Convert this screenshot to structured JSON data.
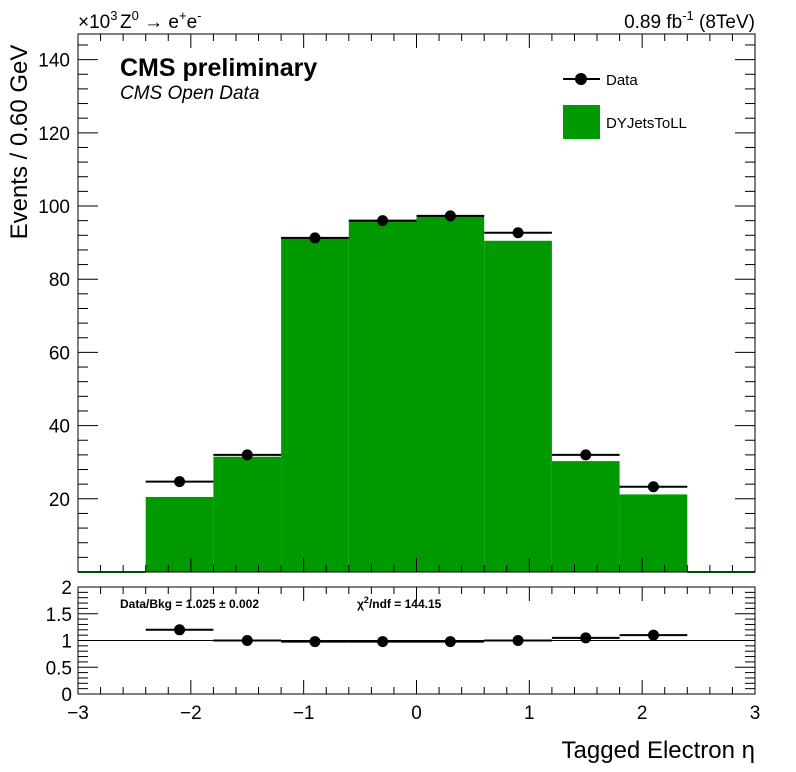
{
  "header": {
    "exponent_label": "×10",
    "exponent_power": "3",
    "process_main": "Z",
    "process_super": "0",
    "process_arrow": " → e",
    "process_plus": "+",
    "process_e": "e",
    "process_minus": "-",
    "lumi_value": "0.89 fb",
    "lumi_super": "-1",
    "lumi_energy": "  (8TeV)"
  },
  "labels": {
    "cms": "CMS preliminary",
    "open_data": "CMS Open Data",
    "ylabel": "Events / 0.60 GeV",
    "xlabel": "Tagged Electron η"
  },
  "legend": {
    "data": "Data",
    "mc": "DYJetsToLL",
    "position": "top-right"
  },
  "ratio": {
    "text": "Data/Bkg = 1.025 ± 0.002",
    "chi_symbol": "χ",
    "chi_super": "2",
    "chi_rest": "/ndf = 144.15"
  },
  "colors": {
    "mc_fill": "#009900",
    "data_marker": "#000000"
  },
  "chart_data": {
    "type": "bar",
    "main": {
      "bin_edges": [
        -2.4,
        -1.8,
        -1.2,
        -0.6,
        0.0,
        0.6,
        1.2,
        1.8,
        2.4
      ],
      "mc_values": [
        20.5,
        31.5,
        91.5,
        96.0,
        97.5,
        90.5,
        30.3,
        21.2
      ],
      "data_values": [
        24.7,
        32.0,
        91.3,
        96.0,
        97.3,
        92.7,
        32.0,
        23.3
      ],
      "xlim": [
        -3,
        3
      ],
      "ylim": [
        0,
        147
      ],
      "yticks": [
        20,
        40,
        60,
        80,
        100,
        120,
        140
      ],
      "ytick_labels": [
        "20",
        "40",
        "60",
        "80",
        "100",
        "120",
        "140"
      ],
      "y_multiplier": "×10^3",
      "series": [
        {
          "name": "Data",
          "style": "marker"
        },
        {
          "name": "DYJetsToLL",
          "style": "filled histogram"
        }
      ]
    },
    "ratio": {
      "x": [
        -2.1,
        -1.5,
        -0.9,
        -0.3,
        0.3,
        0.9,
        1.5,
        2.1
      ],
      "values": [
        1.2,
        1.0,
        0.98,
        0.98,
        0.98,
        1.0,
        1.05,
        1.1
      ],
      "ylim": [
        0,
        2
      ],
      "yticks": [
        0,
        0.5,
        1,
        1.5,
        2
      ],
      "ytick_labels": [
        "0",
        "0.5",
        "1",
        "1.5",
        "2"
      ]
    },
    "xticks": [
      -3,
      -2,
      -1,
      0,
      1,
      2,
      3
    ],
    "xtick_labels": [
      "−3",
      "−2",
      "−1",
      "0",
      "1",
      "2",
      "3"
    ]
  }
}
